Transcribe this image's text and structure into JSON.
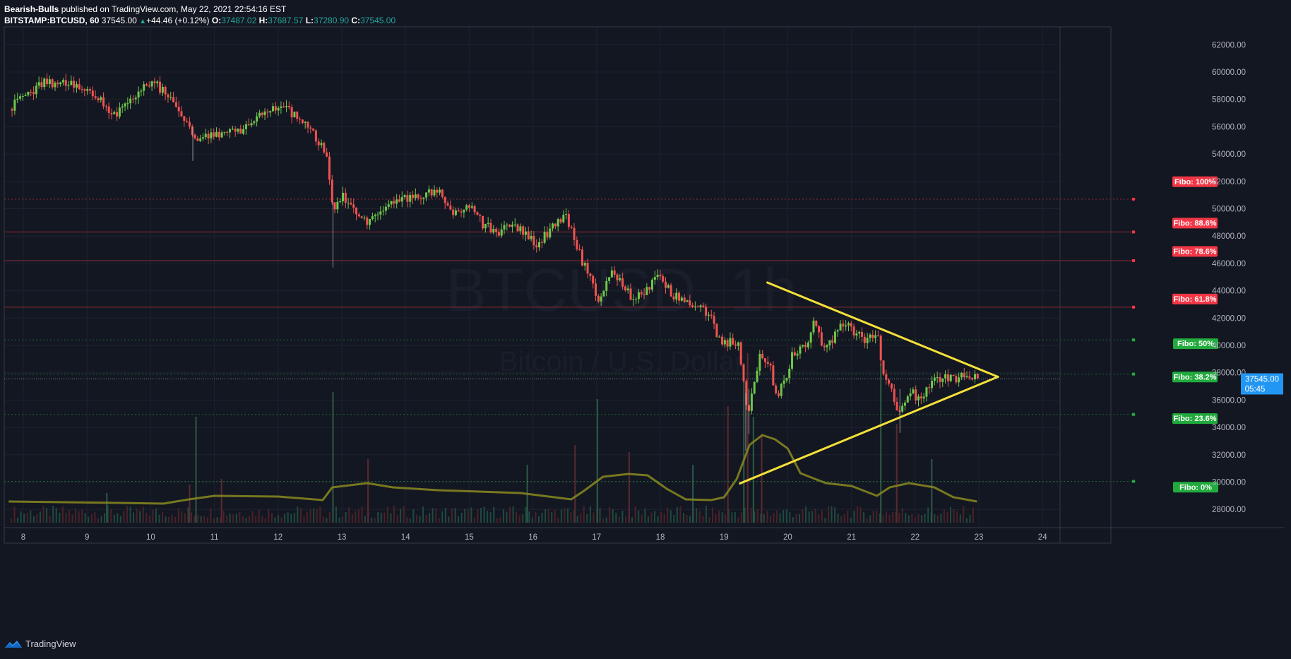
{
  "header": {
    "publisher": "Bearish-Bulls",
    "published_text": "published on TradingView.com, May 22, 2021 22:54:16 EST",
    "symbol": "BITSTAMP:BTCUSD, 60",
    "last": "37545.00",
    "change": "+44.46 (+0.12%)",
    "o_label": "O:",
    "o_value": "37487.02",
    "h_label": "H:",
    "h_value": "37687.57",
    "l_label": "L:",
    "l_value": "37280.90",
    "c_label": "C:",
    "c_value": "37545.00"
  },
  "watermark": {
    "symbol": "BTCUSD, 1h",
    "description": "Bitcoin / U.S. Dollar"
  },
  "footer": {
    "brand": "TradingView"
  },
  "colors": {
    "background": "#131722",
    "up": "#26a69a",
    "candle_up": "#6ec84a",
    "candle_down": "#ef5350",
    "trendline": "#f5e03a",
    "fibo_red": "#f23645",
    "fibo_green": "#22ab3d",
    "price_tag": "#2196f3",
    "volume_ma": "#8a8a1e"
  },
  "chart_data": {
    "type": "candlestick",
    "title": "BITSTAMP:BTCUSD, 60",
    "x_ticks": [
      "8",
      "9",
      "10",
      "11",
      "12",
      "13",
      "14",
      "15",
      "16",
      "17",
      "18",
      "19",
      "20",
      "21",
      "22",
      "23",
      "24"
    ],
    "y_ticks": [
      "28000.00",
      "30000.00",
      "32000.00",
      "34000.00",
      "36000.00",
      "38000.00",
      "40000.00",
      "42000.00",
      "44000.00",
      "46000.00",
      "48000.00",
      "50000.00",
      "52000.00",
      "54000.00",
      "56000.00",
      "58000.00",
      "60000.00",
      "62000.00"
    ],
    "ylim": [
      27200,
      63000
    ],
    "xlim": [
      7.75,
      24.5
    ],
    "price_path": [
      [
        7.77,
        57300
      ],
      [
        8.0,
        58200
      ],
      [
        8.3,
        59200
      ],
      [
        8.7,
        59200
      ],
      [
        9.0,
        58600
      ],
      [
        9.2,
        57900
      ],
      [
        9.38,
        56700
      ],
      [
        9.6,
        57800
      ],
      [
        9.9,
        58900
      ],
      [
        10.05,
        59300
      ],
      [
        10.3,
        57900
      ],
      [
        10.5,
        56800
      ],
      [
        10.7,
        55200
      ],
      [
        10.9,
        55400
      ],
      [
        11.1,
        55600
      ],
      [
        11.4,
        55500
      ],
      [
        11.6,
        56600
      ],
      [
        11.9,
        57500
      ],
      [
        12.1,
        57300
      ],
      [
        12.4,
        56300
      ],
      [
        12.6,
        55000
      ],
      [
        12.75,
        54000
      ],
      [
        12.85,
        49600
      ],
      [
        13.0,
        51000
      ],
      [
        13.2,
        49600
      ],
      [
        13.4,
        48800
      ],
      [
        13.6,
        49700
      ],
      [
        13.9,
        50700
      ],
      [
        14.2,
        51000
      ],
      [
        14.5,
        51200
      ],
      [
        14.75,
        49800
      ],
      [
        15.0,
        50200
      ],
      [
        15.2,
        48900
      ],
      [
        15.45,
        48200
      ],
      [
        15.65,
        48800
      ],
      [
        15.85,
        48200
      ],
      [
        16.05,
        47300
      ],
      [
        16.3,
        48700
      ],
      [
        16.5,
        49400
      ],
      [
        16.62,
        48300
      ],
      [
        16.75,
        46200
      ],
      [
        16.9,
        45000
      ],
      [
        17.0,
        43100
      ],
      [
        17.2,
        45400
      ],
      [
        17.4,
        44600
      ],
      [
        17.55,
        43200
      ],
      [
        17.75,
        44000
      ],
      [
        17.95,
        45000
      ],
      [
        18.2,
        43700
      ],
      [
        18.45,
        43200
      ],
      [
        18.65,
        42600
      ],
      [
        18.8,
        42000
      ],
      [
        18.9,
        40500
      ],
      [
        19.05,
        40200
      ],
      [
        19.2,
        40300
      ],
      [
        19.3,
        37200
      ],
      [
        19.36,
        34800
      ],
      [
        19.45,
        36800
      ],
      [
        19.55,
        39200
      ],
      [
        19.7,
        38600
      ],
      [
        19.82,
        36000
      ],
      [
        19.95,
        37600
      ],
      [
        20.05,
        39200
      ],
      [
        20.3,
        40000
      ],
      [
        20.4,
        42000
      ],
      [
        20.55,
        39600
      ],
      [
        20.75,
        40800
      ],
      [
        20.9,
        41800
      ],
      [
        21.05,
        40800
      ],
      [
        21.25,
        40300
      ],
      [
        21.4,
        41000
      ],
      [
        21.47,
        37800
      ],
      [
        21.6,
        36800
      ],
      [
        21.75,
        35000
      ],
      [
        21.9,
        36700
      ],
      [
        22.05,
        36000
      ],
      [
        22.25,
        37400
      ],
      [
        22.45,
        37800
      ],
      [
        22.6,
        37500
      ],
      [
        22.8,
        37800
      ],
      [
        22.97,
        37545
      ]
    ],
    "volume_ma": [
      [
        7.77,
        300
      ],
      [
        9.5,
        280
      ],
      [
        10.2,
        270
      ],
      [
        10.6,
        330
      ],
      [
        11.0,
        380
      ],
      [
        12.0,
        370
      ],
      [
        12.7,
        320
      ],
      [
        12.85,
        500
      ],
      [
        13.4,
        560
      ],
      [
        13.8,
        500
      ],
      [
        14.5,
        460
      ],
      [
        15.8,
        420
      ],
      [
        16.6,
        330
      ],
      [
        16.8,
        450
      ],
      [
        17.1,
        650
      ],
      [
        17.5,
        690
      ],
      [
        17.8,
        670
      ],
      [
        18.1,
        480
      ],
      [
        18.4,
        330
      ],
      [
        18.8,
        320
      ],
      [
        19.0,
        360
      ],
      [
        19.2,
        620
      ],
      [
        19.4,
        1100
      ],
      [
        19.6,
        1240
      ],
      [
        19.8,
        1180
      ],
      [
        20.0,
        1050
      ],
      [
        20.2,
        700
      ],
      [
        20.6,
        560
      ],
      [
        21.0,
        520
      ],
      [
        21.4,
        380
      ],
      [
        21.6,
        500
      ],
      [
        21.9,
        560
      ],
      [
        22.3,
        500
      ],
      [
        22.6,
        360
      ],
      [
        22.97,
        300
      ]
    ],
    "volume_bars": [
      [
        9.3,
        420
      ],
      [
        10.6,
        540
      ],
      [
        10.7,
        1500
      ],
      [
        11.1,
        620
      ],
      [
        12.85,
        1850
      ],
      [
        13.4,
        900
      ],
      [
        15.9,
        820
      ],
      [
        16.65,
        1100
      ],
      [
        17.0,
        1750
      ],
      [
        17.5,
        1000
      ],
      [
        18.5,
        820
      ],
      [
        19.05,
        1650
      ],
      [
        19.3,
        2050
      ],
      [
        19.36,
        2400
      ],
      [
        19.45,
        1500
      ],
      [
        19.58,
        1250
      ],
      [
        21.45,
        2250
      ],
      [
        21.7,
        1400
      ],
      [
        22.25,
        900
      ]
    ],
    "trendlines": [
      {
        "name": "upper",
        "from": [
          19.68,
          44600
        ],
        "to": [
          23.3,
          37700
        ]
      },
      {
        "name": "lower",
        "from": [
          19.25,
          29900
        ],
        "to": [
          23.3,
          37700
        ]
      }
    ],
    "fibo_levels": [
      {
        "label": "Fibo:  100%",
        "price": 50700,
        "label_price": 52000,
        "color": "red",
        "style": "dotted"
      },
      {
        "label": "Fibo: 88.6%",
        "price": 48300,
        "label_price": 48970,
        "color": "red",
        "style": "solid"
      },
      {
        "label": "Fibo: 78.6%",
        "price": 46200,
        "label_price": 46900,
        "color": "red",
        "style": "solid"
      },
      {
        "label": "Fibo: 61.8%",
        "price": 42800,
        "label_price": 43420,
        "color": "red",
        "style": "solid"
      },
      {
        "label": "Fibo:    50%",
        "price": 40400,
        "label_price": 40150,
        "color": "green",
        "style": "dotted"
      },
      {
        "label": "Fibo: 38.2%",
        "price": 37900,
        "label_price": 37710,
        "color": "green",
        "style": "dotted"
      },
      {
        "label": "Fibo: 23.6%",
        "price": 34950,
        "label_price": 34670,
        "color": "green",
        "style": "dotted"
      },
      {
        "label": "Fibo:    0%",
        "price": 30050,
        "label_price": 29650,
        "color": "green",
        "style": "dotted"
      }
    ],
    "last_price": "37545.00",
    "last_price_value": 37545,
    "countdown": "05:45"
  }
}
